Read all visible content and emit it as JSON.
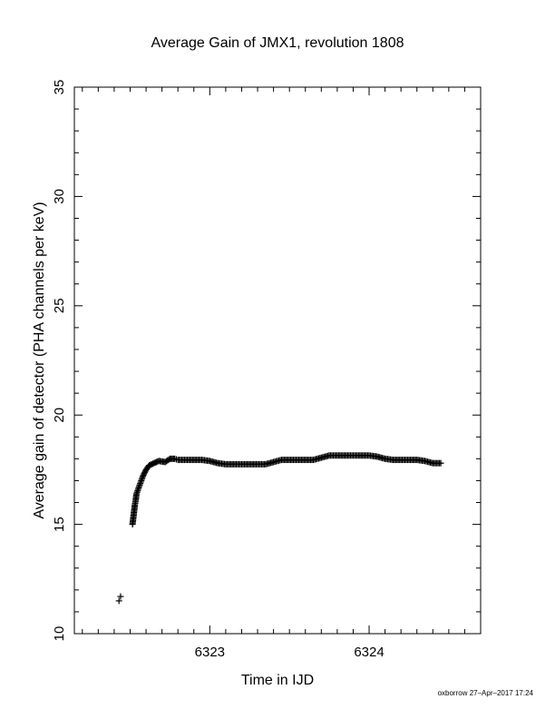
{
  "chart_data": {
    "type": "scatter",
    "title": "Average Gain of JMX1, revolution 1808",
    "xlabel": "Time in IJD",
    "ylabel": "Average gain of detector (PHA channels per keV)",
    "xlim": [
      6322.15,
      6324.7
    ],
    "ylim": [
      10,
      35
    ],
    "xticks": [
      "6323",
      "6324"
    ],
    "yticks": [
      "10",
      "15",
      "20",
      "25",
      "30",
      "35"
    ],
    "marker": "plus",
    "grid": false,
    "series": [
      {
        "x": [
          6322.43,
          6322.44,
          6322.515,
          6322.52,
          6322.525,
          6322.53,
          6322.535,
          6322.54,
          6322.55,
          6322.56,
          6322.57,
          6322.58,
          6322.6,
          6322.62,
          6322.65,
          6322.68,
          6322.72,
          6322.75,
          6322.78,
          6322.8,
          6322.85,
          6322.9,
          6322.95,
          6323.0,
          6323.05,
          6323.1,
          6323.15,
          6323.2,
          6323.3,
          6323.35,
          6323.4,
          6323.45,
          6323.5,
          6323.55,
          6323.6,
          6323.65,
          6323.7,
          6323.75,
          6323.8,
          6323.85,
          6323.9,
          6323.95,
          6324.0,
          6324.05,
          6324.1,
          6324.15,
          6324.2,
          6324.25,
          6324.3,
          6324.35,
          6324.4,
          6324.45
        ],
        "y": [
          11.5,
          11.7,
          15.0,
          15.3,
          15.6,
          15.9,
          16.1,
          16.4,
          16.6,
          16.8,
          17.0,
          17.2,
          17.5,
          17.7,
          17.8,
          17.9,
          17.85,
          18.0,
          18.0,
          17.95,
          17.95,
          17.95,
          17.95,
          17.9,
          17.8,
          17.75,
          17.75,
          17.75,
          17.75,
          17.75,
          17.85,
          17.95,
          17.95,
          17.95,
          17.95,
          17.95,
          18.05,
          18.15,
          18.15,
          18.15,
          18.15,
          18.15,
          18.15,
          18.1,
          18.0,
          17.95,
          17.95,
          17.95,
          17.95,
          17.9,
          17.8,
          17.8
        ]
      }
    ]
  },
  "footer": "oxborrow 27–Apr–2017 17:24"
}
